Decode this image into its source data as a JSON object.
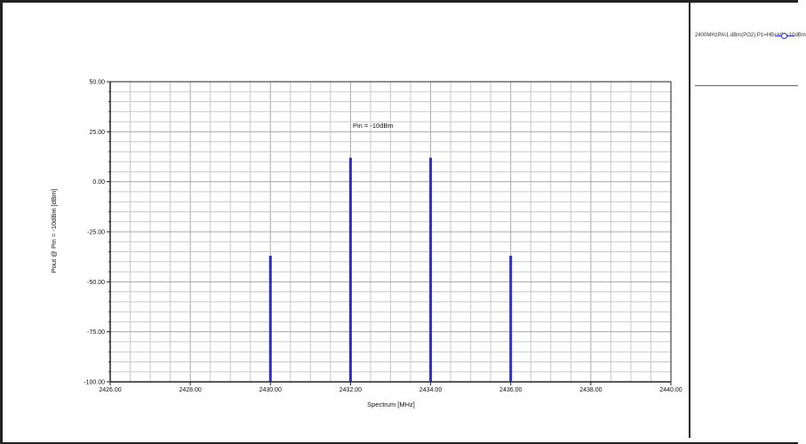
{
  "chart_data": {
    "type": "bar",
    "title": "",
    "xlabel": "Spectrum [MHz]",
    "ylabel": "Pout @ Pin = -10dBm [dBm]",
    "xlim": [
      2426.0,
      2440.0
    ],
    "ylim": [
      -100.0,
      50.0
    ],
    "x_ticks": [
      2426.0,
      2428.0,
      2430.0,
      2432.0,
      2434.0,
      2436.0,
      2438.0,
      2440.0
    ],
    "y_ticks": [
      50.0,
      25.0,
      0.0,
      -25.0,
      -50.0,
      -75.0,
      -100.0
    ],
    "x_tick_labels": [
      "2426.00",
      "2428.00",
      "2430.00",
      "2432.00",
      "2434.00",
      "2436.00",
      "2438.00",
      "2440.00"
    ],
    "y_tick_labels": [
      "50.00",
      "25.00",
      "0.00",
      "-25.00",
      "-50.00",
      "-75.00",
      "-100.00"
    ],
    "grid": true,
    "legend_position": "top-right",
    "annotation": "Pin = -10dBm",
    "series": [
      {
        "name": "2400MHzPA\\1 dBm(PO2) P1=HB+H1=-10dBm",
        "x": [
          2430.0,
          2432.0,
          2434.0,
          2436.0
        ],
        "values": [
          -37.0,
          12.0,
          12.0,
          -37.0
        ]
      }
    ],
    "colors": {
      "series": "#2d2dd4",
      "grid": "#c9c9c9",
      "axis": "#222222"
    }
  }
}
